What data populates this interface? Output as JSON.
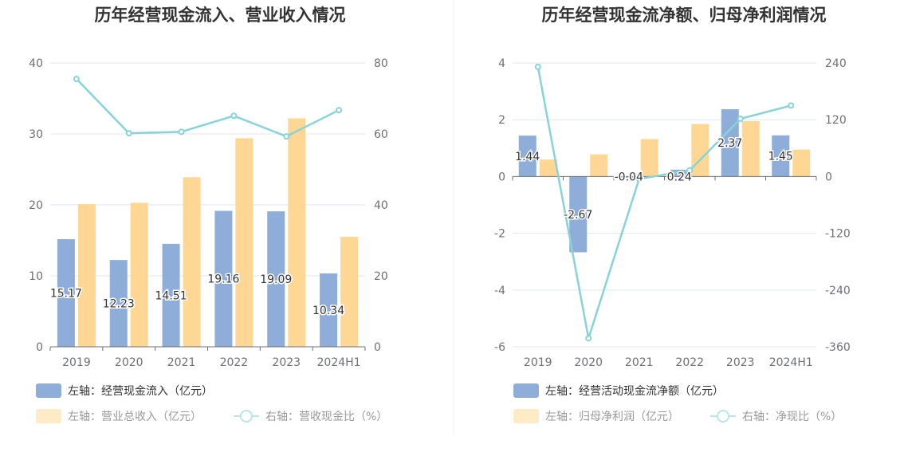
{
  "colors": {
    "bar_primary": "#8eadd9",
    "bar_secondary": "#fed795",
    "line": "#86d4d8",
    "axis": "#6e7079",
    "grid": "#e0e6f1"
  },
  "chart_data": [
    {
      "type": "bar",
      "title": "历年经营现金流入、营业收入情况",
      "categories": [
        "2019",
        "2020",
        "2021",
        "2022",
        "2023",
        "2024H1"
      ],
      "y_left": {
        "lim": [
          0,
          40
        ],
        "ticks": [
          "0",
          "10",
          "20",
          "30",
          "40"
        ]
      },
      "y_right": {
        "lim": [
          0,
          80
        ],
        "ticks": [
          "0",
          "20",
          "40",
          "60",
          "80"
        ]
      },
      "series": [
        {
          "name": "左轴：经营现金流入（亿元）",
          "type": "bar",
          "axis": "left",
          "values": [
            15.17,
            12.23,
            14.51,
            19.16,
            19.09,
            10.34
          ],
          "labels": [
            "15.17",
            "12.23",
            "14.51",
            "19.16",
            "19.09",
            "10.34"
          ]
        },
        {
          "name": "左轴：营业总收入（亿元）",
          "type": "bar",
          "axis": "left",
          "values": [
            20.1,
            20.3,
            23.9,
            29.4,
            32.2,
            15.5
          ]
        },
        {
          "name": "右轴：营收现金比（%）",
          "type": "line",
          "axis": "right",
          "values": [
            75.5,
            60.2,
            60.6,
            65.1,
            59.3,
            66.7
          ]
        }
      ]
    },
    {
      "type": "bar",
      "title": "历年经营现金流净额、归母净利润情况",
      "categories": [
        "2019",
        "2020",
        "2021",
        "2022",
        "2023",
        "2024H1"
      ],
      "y_left": {
        "lim": [
          -6,
          4
        ],
        "ticks": [
          "-6",
          "-4",
          "-2",
          "0",
          "2",
          "4"
        ]
      },
      "y_right": {
        "lim": [
          -360,
          240
        ],
        "ticks": [
          "-360",
          "-240",
          "-120",
          "0",
          "120",
          "240"
        ]
      },
      "series": [
        {
          "name": "左轴：经营活动现金流净额（亿元）",
          "type": "bar",
          "axis": "left",
          "values": [
            1.44,
            -2.67,
            -0.04,
            0.24,
            2.37,
            1.45
          ],
          "labels": [
            "1.44",
            "-2.67",
            "-0.04",
            "0.24",
            "2.37",
            "1.45"
          ]
        },
        {
          "name": "左轴：归母净利润（亿元）",
          "type": "bar",
          "axis": "left",
          "values": [
            0.6,
            0.78,
            1.32,
            1.85,
            1.95,
            0.95
          ]
        },
        {
          "name": "右轴：净现比（%）",
          "type": "line",
          "axis": "right",
          "values": [
            232,
            -342,
            -5,
            13,
            122,
            150
          ]
        }
      ]
    }
  ]
}
